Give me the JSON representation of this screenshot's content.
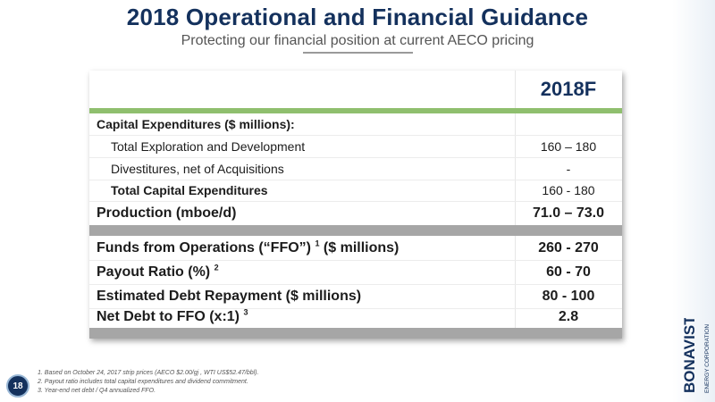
{
  "header": {
    "title": "2018 Operational and Financial Guidance",
    "subtitle": "Protecting our financial position at current AECO pricing"
  },
  "table": {
    "column_label": "2018F",
    "section1": [
      {
        "label": "Capital Expenditures ($ millions):",
        "value": "",
        "style": "heading"
      },
      {
        "label": "Total Exploration and Development",
        "value": "160 – 180",
        "style": "indent"
      },
      {
        "label": "Divestitures, net of Acquisitions",
        "value": "-",
        "style": "indent"
      },
      {
        "label": "Total Capital Expenditures",
        "value": "160 - 180",
        "style": "indent-bold"
      },
      {
        "label": "Production (mboe/d)",
        "value": "71.0 – 73.0",
        "style": "big"
      }
    ],
    "section2": [
      {
        "label": "Funds from Operations (“FFO”)",
        "sup": "1",
        "suffix": " ($ millions)",
        "value": "260 - 270"
      },
      {
        "label": "Payout Ratio (%)",
        "sup": "2",
        "suffix": "",
        "value": "60 - 70"
      },
      {
        "label": "Estimated Debt Repayment ($ millions)",
        "sup": "",
        "suffix": "",
        "value": "80 - 100"
      },
      {
        "label": "Net Debt to FFO (x:1)",
        "sup": "3",
        "suffix": "",
        "value": "2.8"
      }
    ]
  },
  "footer": {
    "page_number": "18",
    "footnotes": [
      "1. Based on October 24, 2017 strip prices (AECO $2.00/gj , WTI US$52.47/bbl).",
      "2. Payout ratio includes total capital expenditures and dividend commitment.",
      "3. Year-end net debt / Q4 annualized FFO."
    ]
  },
  "logo": {
    "name": "BONAVISTA",
    "tagline": "ENERGY CORPORATION"
  },
  "colors": {
    "title": "#14315d",
    "accent_green": "#8fbf6e",
    "divider_gray": "#a6a6a6"
  }
}
